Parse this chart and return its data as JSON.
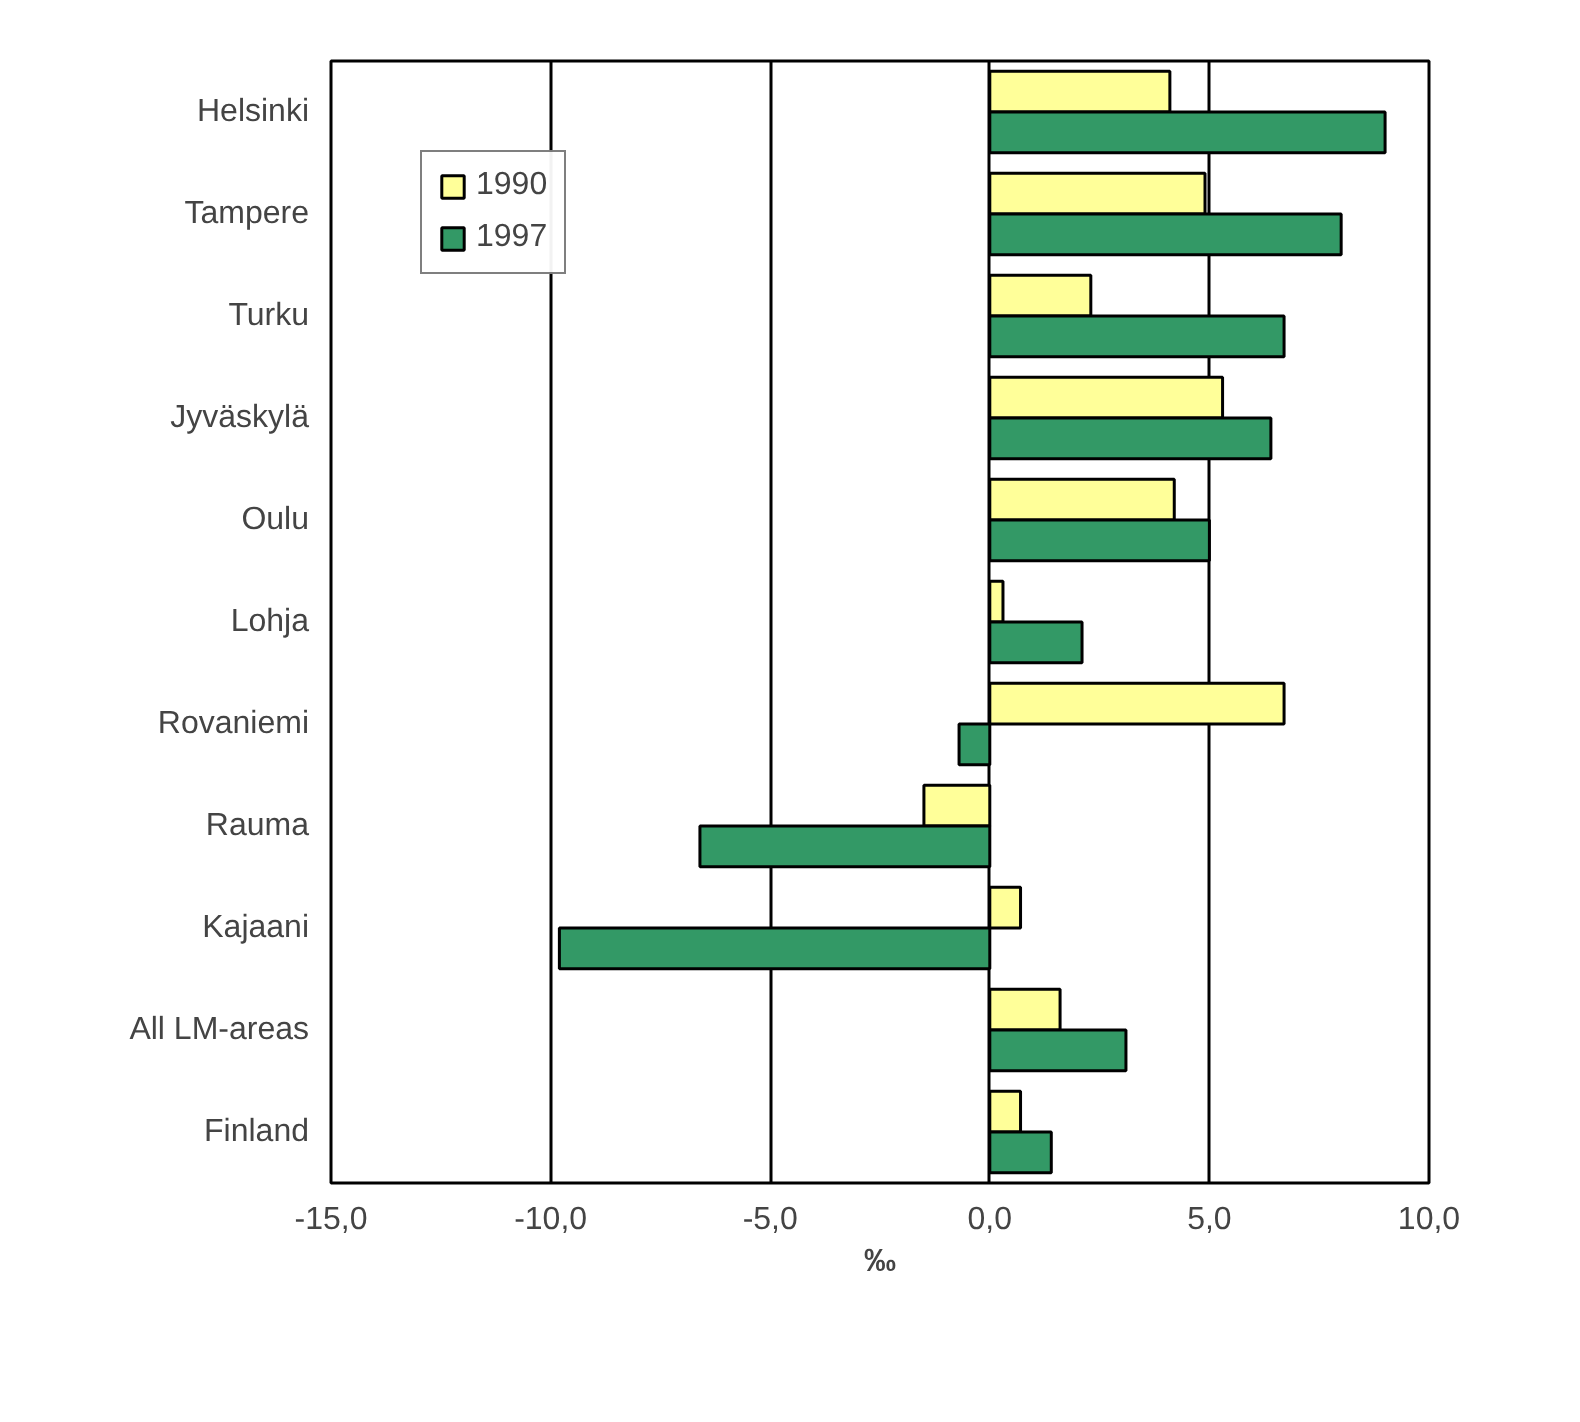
{
  "chart_data": {
    "type": "bar",
    "orientation": "horizontal",
    "xlabel": "‰",
    "categories": [
      "Helsinki",
      "Tampere",
      "Turku",
      "Jyväskylä",
      "Oulu",
      "Lohja",
      "Rovaniemi",
      "Rauma",
      "Kajaani",
      "All LM-areas",
      "Finland"
    ],
    "series": [
      {
        "name": "1990",
        "color": "#ffff99",
        "values": [
          4.1,
          4.9,
          2.3,
          5.3,
          4.2,
          0.3,
          6.7,
          -1.5,
          0.7,
          1.6,
          0.7
        ]
      },
      {
        "name": "1997",
        "color": "#339966",
        "values": [
          9.0,
          8.0,
          6.7,
          6.4,
          5.0,
          2.1,
          -0.7,
          -6.6,
          -9.8,
          3.1,
          1.4
        ]
      }
    ],
    "xlim": [
      -15,
      10
    ],
    "xticks": [
      {
        "value": -15,
        "label": "-15,0"
      },
      {
        "value": -10,
        "label": "-10,0"
      },
      {
        "value": -5,
        "label": "-5,0"
      },
      {
        "value": 0,
        "label": "0,0"
      },
      {
        "value": 5,
        "label": "5,0"
      },
      {
        "value": 10,
        "label": "10,0"
      }
    ],
    "grid": "x",
    "legend": "top left"
  }
}
